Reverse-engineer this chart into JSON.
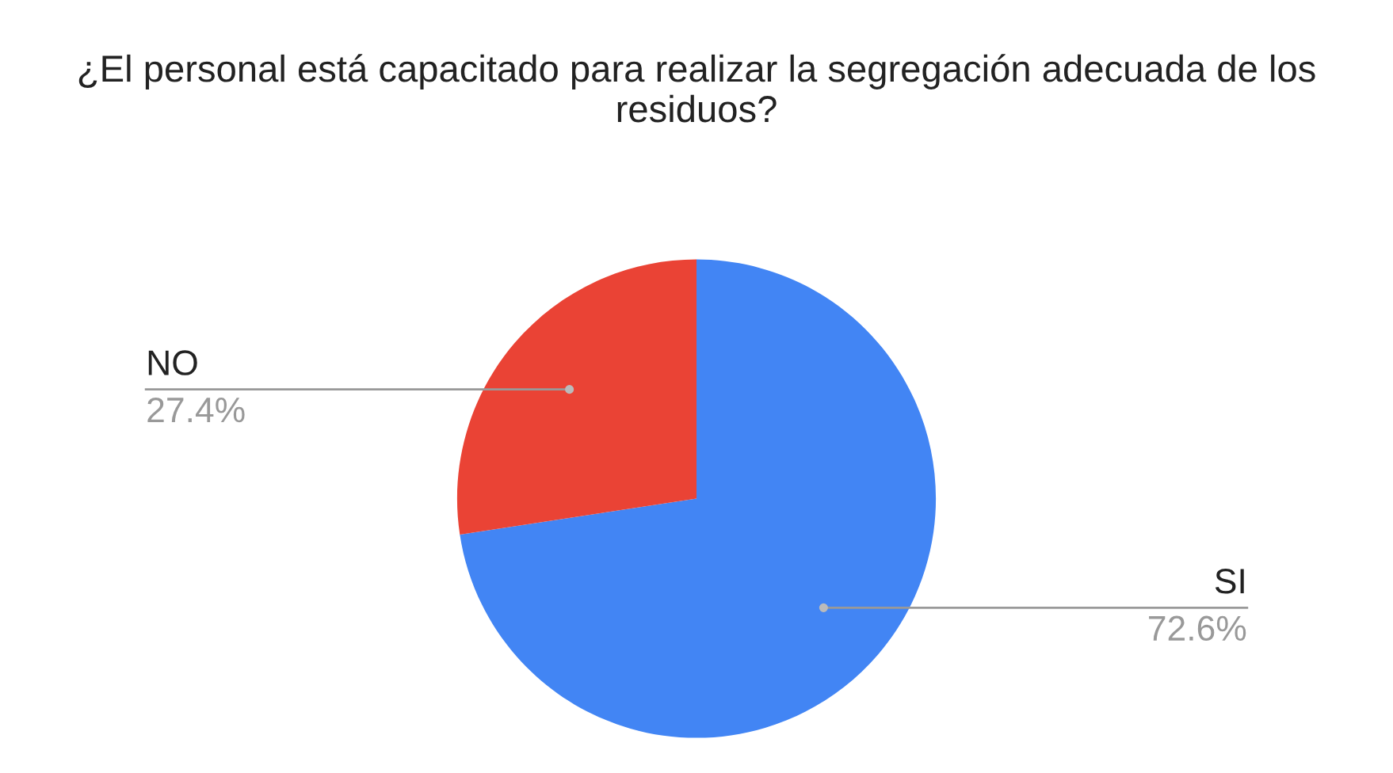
{
  "chart_data": {
    "type": "pie",
    "title": "¿El personal está capacitado para realizar la segregación adecuada de los residuos?",
    "categories": [
      "SI",
      "NO"
    ],
    "values": [
      72.6,
      27.4
    ],
    "value_labels": [
      "72.6%",
      "27.4%"
    ],
    "colors": [
      "#4285f4",
      "#ea4335"
    ],
    "legend": false
  }
}
